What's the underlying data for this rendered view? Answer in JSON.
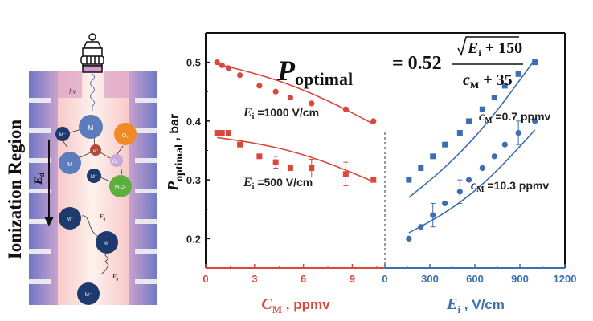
{
  "diagram": {
    "side_label": "Ionization Region",
    "field_label": "E",
    "field_subscript": "d",
    "photon_label": "hν",
    "force_label": "F",
    "force_subscript": "q",
    "species": {
      "molecule": "M",
      "anion": "M⁻",
      "electron": "e⁻",
      "oxygen": "O₂",
      "oxygen_anion": "O₂⁻",
      "cluster": "M-O₂"
    },
    "colors": {
      "molecule": "#5b7dbd",
      "ion": "#1f3a6e",
      "electron": "#b5473c",
      "oxygen": "#f08a24",
      "oxygen_anion": "#c8a9dc",
      "cluster": "#5cae3f",
      "tube_inner": "#f6c6c8",
      "tube_wall": "#7d7fc7"
    }
  },
  "chart_data": {
    "type": "scatter",
    "equation": {
      "lhs": "P",
      "lhs_sub": "optimal",
      "coef": "= 0.52",
      "numerator": "E",
      "numerator_sub": "i",
      "numerator_rest": " + 150",
      "denominator": "c",
      "denominator_sub": "M",
      "denominator_rest": " + 35"
    },
    "ylabel": "P",
    "ylabel_sub": "optimal",
    "ylabel_unit": " , bar",
    "ylim": [
      0.15,
      0.55
    ],
    "yticks": [
      0.2,
      0.3,
      0.4,
      0.5
    ],
    "ytick_labels": [
      "0.2",
      "0.3",
      "0.4",
      "0.5"
    ],
    "grid": false,
    "panels": [
      {
        "name": "concentration",
        "color": "#d9483b",
        "xlabel": "C",
        "xlabel_sub": "M",
        "xlabel_unit": " , ppmv",
        "xlim": [
          0,
          11
        ],
        "xticks": [
          0,
          3,
          6,
          9
        ],
        "xtick_labels": [
          "0",
          "3",
          "6",
          "9"
        ],
        "series": [
          {
            "name": "Ei =1000 V/cm",
            "label_main": "E",
            "label_sub": "i",
            "label_rest": " =1000 V/cm",
            "marker": "circle",
            "x": [
              0.7,
              1.0,
              1.4,
              2.1,
              3.3,
              4.3,
              5.2,
              6.5,
              8.6,
              10.3
            ],
            "y": [
              0.5,
              0.495,
              0.49,
              0.478,
              0.46,
              0.45,
              0.44,
              0.43,
              0.42,
              0.4
            ],
            "fit_x": [
              0.7,
              10.3
            ],
            "fit_y": [
              0.497,
              0.395
            ]
          },
          {
            "name": "Ei =500 V/cm",
            "label_main": "E",
            "label_sub": "i",
            "label_rest": " =500 V/cm",
            "marker": "square",
            "x": [
              0.7,
              1.0,
              1.4,
              2.1,
              3.3,
              4.3,
              5.2,
              6.5,
              8.6,
              10.3
            ],
            "y": [
              0.38,
              0.38,
              0.38,
              0.36,
              0.34,
              0.33,
              0.32,
              0.32,
              0.31,
              0.3
            ],
            "errors": [
              0,
              0,
              0,
              0,
              0,
              0.01,
              0,
              0.015,
              0.02,
              0
            ],
            "fit_x": [
              0.7,
              10.3
            ],
            "fit_y": [
              0.372,
              0.297
            ]
          }
        ]
      },
      {
        "name": "field",
        "color": "#3b6fae",
        "xlabel": "E",
        "xlabel_sub": "i",
        "xlabel_unit": " , V/cm",
        "xlim": [
          0,
          1200
        ],
        "xticks": [
          0,
          300,
          600,
          900,
          1200
        ],
        "xtick_labels": [
          "0",
          "300",
          "600",
          "900",
          "1200"
        ],
        "series": [
          {
            "name": "cM =0.7 ppmv",
            "label_main": "c",
            "label_sub": "M",
            "label_rest": " =0.7 ppmv",
            "marker": "square",
            "x": [
              160,
              240,
              320,
              400,
              500,
              560,
              650,
              730,
              800,
              890,
              1000
            ],
            "y": [
              0.3,
              0.32,
              0.34,
              0.36,
              0.38,
              0.4,
              0.42,
              0.44,
              0.46,
              0.48,
              0.5
            ],
            "fit_x": [
              160,
              1000
            ],
            "fit_y": [
              0.27,
              0.505
            ]
          },
          {
            "name": "cM =10.3 ppmv",
            "label_main": "c",
            "label_sub": "M",
            "label_rest": " =10.3 ppmv",
            "marker": "circle",
            "x": [
              160,
              240,
              320,
              400,
              500,
              560,
              650,
              730,
              800,
              890,
              1000
            ],
            "y": [
              0.2,
              0.22,
              0.24,
              0.26,
              0.28,
              0.3,
              0.32,
              0.34,
              0.36,
              0.38,
              0.4
            ],
            "errors": [
              0,
              0,
              0.02,
              0,
              0.02,
              0,
              0,
              0,
              0,
              0.02,
              0
            ],
            "fit_x": [
              160,
              1000
            ],
            "fit_y": [
              0.21,
              0.385
            ]
          }
        ]
      }
    ]
  }
}
